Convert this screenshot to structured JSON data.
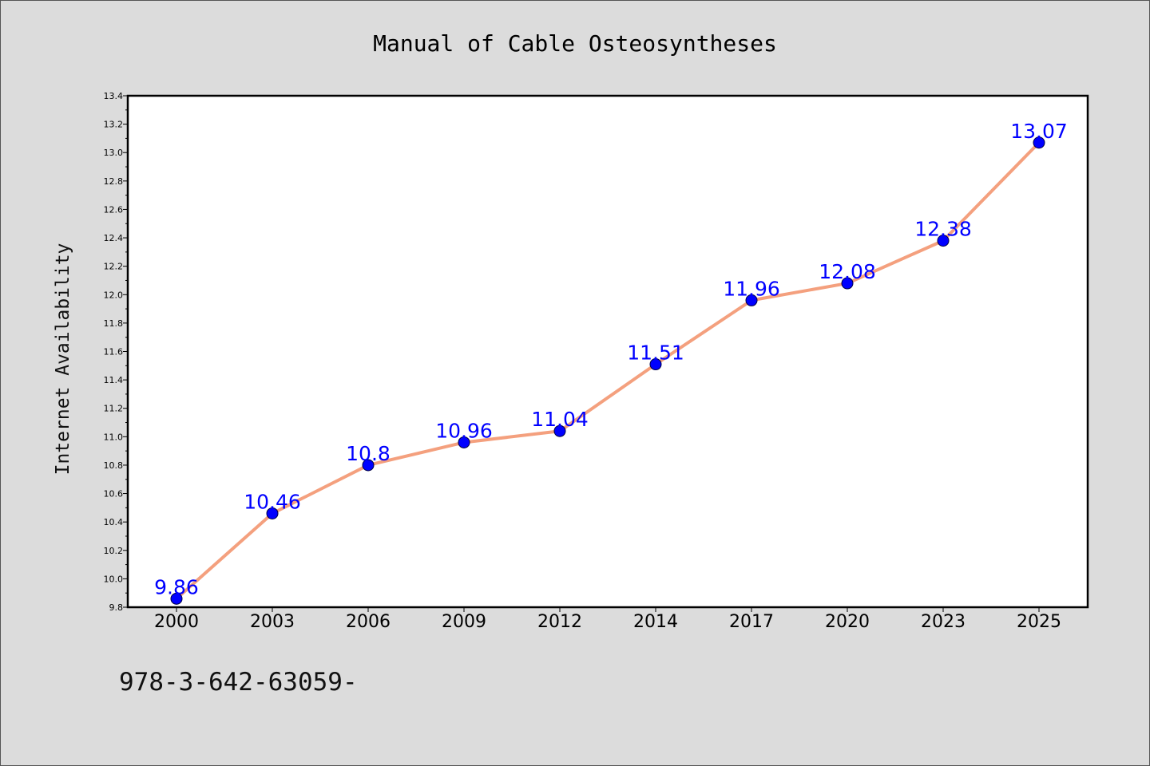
{
  "chart_data": {
    "type": "line",
    "title": "Manual of Cable Osteosyntheses",
    "ylabel": "Internet Availability",
    "xlabel": "",
    "categories": [
      "2000",
      "2003",
      "2006",
      "2009",
      "2012",
      "2014",
      "2017",
      "2020",
      "2023",
      "2025"
    ],
    "series": [
      {
        "values": [
          9.86,
          10.46,
          10.8,
          10.96,
          11.04,
          11.51,
          11.96,
          12.08,
          12.38,
          13.07
        ],
        "labels": [
          "9.86",
          "10.46",
          "10.8",
          "10.96",
          "11.04",
          "11.51",
          "11.96",
          "12.08",
          "12.38",
          "13.07"
        ],
        "line_color": "#f4a07e",
        "marker_color": "#0000ff"
      }
    ],
    "ylim": [
      9.8,
      13.4
    ],
    "yticks": [
      "9.8",
      "10.0",
      "10.2",
      "10.4",
      "10.6",
      "10.8",
      "11.0",
      "11.2",
      "11.4",
      "11.6",
      "11.8",
      "12.0",
      "12.2",
      "12.4",
      "12.6",
      "12.8",
      "13.0",
      "13.2",
      "13.4"
    ],
    "grid": false,
    "background": "#dcdcdc",
    "plot_background": "#ffffff"
  },
  "footer": {
    "text": "978-3-642-63059-"
  }
}
